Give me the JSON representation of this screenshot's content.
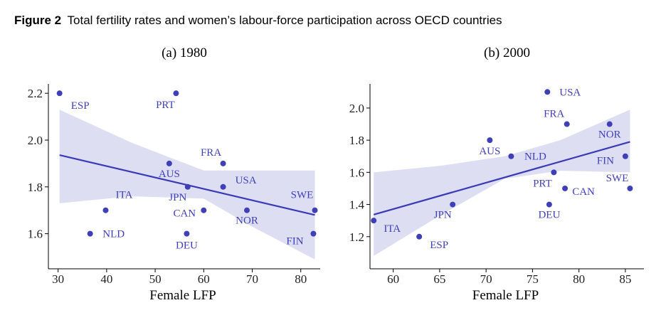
{
  "figure": {
    "label": "Figure 2",
    "title": "Total fertility rates and women’s labour-force participation across OECD countries"
  },
  "chart_data": [
    {
      "type": "scatter",
      "title": "(a) 1980",
      "xlabel": "Female LFP",
      "xlim": [
        28,
        84
      ],
      "ylim": [
        1.45,
        2.24
      ],
      "xticks": [
        30,
        40,
        50,
        60,
        70,
        80
      ],
      "yticks": [
        1.6,
        1.8,
        {
          "value": 2,
          "label": "2.0"
        },
        2.2
      ],
      "color": "#3f3fb8",
      "fit_color": "#3a3ab5",
      "band_color": "#dedef3",
      "labels": [
        "ESP",
        "PRT",
        "FRA",
        "AUS",
        "JPN",
        "USA",
        "ITA",
        "CAN",
        "NOR",
        "SWE",
        "NLD",
        "DEU",
        "FIN"
      ],
      "x": [
        30.3,
        54.3,
        64.0,
        52.9,
        56.7,
        64.0,
        39.8,
        60.0,
        68.9,
        82.9,
        36.6,
        56.5,
        82.6
      ],
      "values": [
        2.2,
        2.2,
        1.9,
        1.9,
        1.8,
        1.8,
        1.7,
        1.7,
        1.7,
        1.7,
        1.6,
        1.6,
        1.6
      ],
      "fit": {
        "x": [
          30.3,
          82.9
        ],
        "values": [
          1.936,
          1.68
        ]
      },
      "band": {
        "x": [
          30.3,
          45,
          60,
          70,
          82.9
        ],
        "upper": [
          2.13,
          1.99,
          1.87,
          1.87,
          1.87
        ],
        "lower": [
          1.73,
          1.76,
          1.75,
          1.63,
          1.49
        ]
      }
    },
    {
      "type": "scatter",
      "title": "(b) 2000",
      "xlabel": "Female LFP",
      "xlim": [
        57.5,
        87
      ],
      "ylim": [
        1.0,
        2.15
      ],
      "xticks": [
        60,
        65,
        70,
        75,
        80,
        85
      ],
      "yticks": [
        1.2,
        1.4,
        1.6,
        1.8,
        {
          "value": 2,
          "label": "2.0"
        }
      ],
      "color": "#3f3fb8",
      "fit_color": "#3a3ab5",
      "band_color": "#dedef3",
      "labels": [
        "USA",
        "FRA",
        "NOR",
        "AUS",
        "NLD",
        "FIN",
        "PRT",
        "CAN",
        "SWE",
        "DEU",
        "JPN",
        "ITA",
        "ESP"
      ],
      "x": [
        76.6,
        78.7,
        83.3,
        70.4,
        72.7,
        85.0,
        77.3,
        78.5,
        85.5,
        76.8,
        66.4,
        57.9,
        62.8
      ],
      "values": [
        2.1,
        1.9,
        1.9,
        1.8,
        1.7,
        1.7,
        1.6,
        1.5,
        1.5,
        1.4,
        1.4,
        1.3,
        1.2
      ],
      "fit": {
        "x": [
          57.9,
          85.5
        ],
        "values": [
          1.337,
          1.79
        ]
      },
      "band": {
        "x": [
          57.9,
          65,
          72,
          78,
          85.5
        ],
        "upper": [
          1.6,
          1.64,
          1.7,
          1.8,
          1.99
        ],
        "lower": [
          1.08,
          1.33,
          1.56,
          1.61,
          1.6
        ]
      }
    }
  ]
}
